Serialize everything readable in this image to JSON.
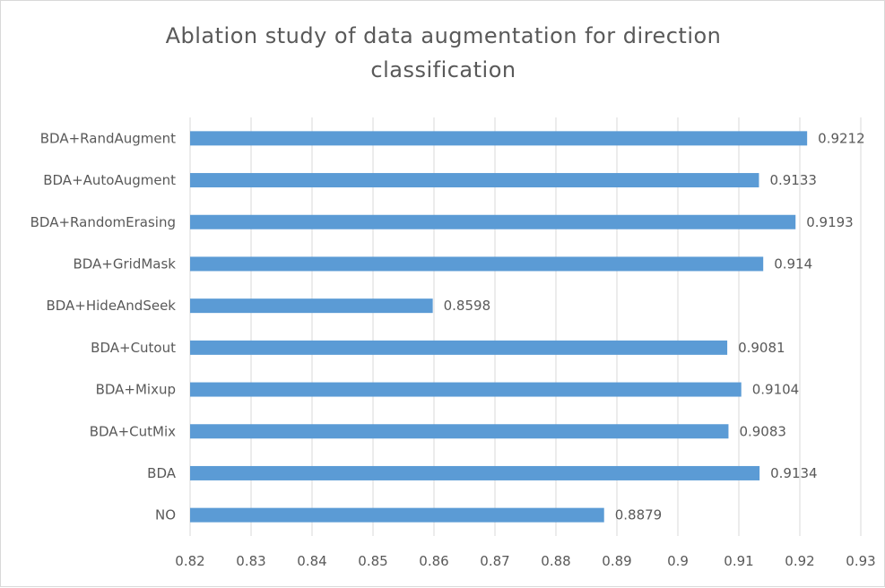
{
  "chart_data": {
    "type": "bar",
    "orientation": "horizontal",
    "title_lines": [
      "Ablation study of data augmentation for direction",
      "classification"
    ],
    "categories": [
      "BDA+RandAugment",
      "BDA+AutoAugment",
      "BDA+RandomErasing",
      "BDA+GridMask",
      "BDA+HideAndSeek",
      "BDA+Cutout",
      "BDA+Mixup",
      "BDA+CutMix",
      "BDA",
      "NO"
    ],
    "values": [
      0.9212,
      0.9133,
      0.9193,
      0.914,
      0.8598,
      0.9081,
      0.9104,
      0.9083,
      0.9134,
      0.8879
    ],
    "value_labels": [
      "0.9212",
      "0.9133",
      "0.9193",
      "0.914",
      "0.8598",
      "0.9081",
      "0.9104",
      "0.9083",
      "0.9134",
      "0.8879"
    ],
    "xlim": [
      0.82,
      0.93
    ],
    "x_ticks": [
      "0.82",
      "0.83",
      "0.84",
      "0.85",
      "0.86",
      "0.87",
      "0.88",
      "0.89",
      "0.9",
      "0.91",
      "0.92",
      "0.93"
    ],
    "grid": "vertical",
    "legend": "none",
    "bar_color": "#5b9bd5",
    "grid_color": "#d9d9d9"
  }
}
